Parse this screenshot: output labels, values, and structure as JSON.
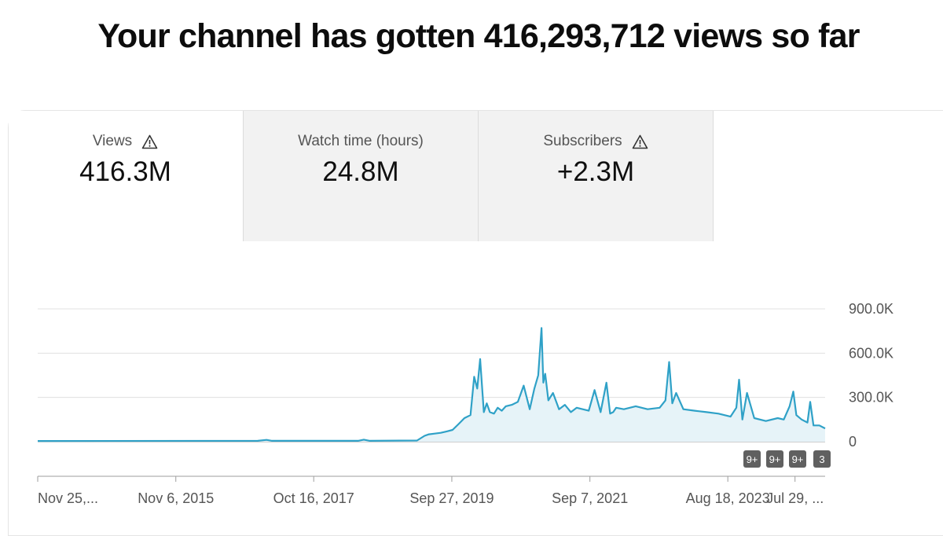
{
  "headline": "Your channel has gotten 416,293,712 views so far",
  "tabs": [
    {
      "label": "Views",
      "value": "416.3M",
      "icon": "warning-icon"
    },
    {
      "label": "Watch time (hours)",
      "value": "24.8M"
    },
    {
      "label": "Subscribers",
      "value": "+2.3M",
      "icon": "warning-icon"
    }
  ],
  "colors": {
    "line": "#2fa1c7",
    "fill": "#e6f3f8",
    "grid": "#e0e0e0",
    "badge": "#606060"
  },
  "badges": [
    "9+",
    "9+",
    "9+",
    "3"
  ],
  "chart_data": {
    "type": "area",
    "title": "",
    "xlabel": "",
    "ylabel": "",
    "x_range": [
      "2013-11-25",
      "2024-12-31"
    ],
    "ylim": [
      0,
      900000
    ],
    "y_ticks": [
      0,
      300000,
      600000,
      900000
    ],
    "y_tick_labels": [
      "0",
      "300.0K",
      "600.0K",
      "900.0K"
    ],
    "x_tick_dates": [
      "2013-11-25",
      "2015-11-06",
      "2017-10-16",
      "2019-09-27",
      "2021-09-07",
      "2023-08-18",
      "2024-07-29"
    ],
    "x_tick_labels": [
      "Nov 25,...",
      "Nov 6, 2015",
      "Oct 16, 2017",
      "Sep 27, 2019",
      "Sep 7, 2021",
      "Aug 18, 2023",
      "Jul 29, ..."
    ],
    "grid": true,
    "series": [
      {
        "x": [
          "2013-11-25",
          "2017-01-01",
          "2017-02-15",
          "2017-03-15",
          "2018-06-01",
          "2018-07-01",
          "2018-08-01",
          "2019-04-01",
          "2019-05-10",
          "2019-06-01",
          "2019-07-01",
          "2019-08-01",
          "2019-09-01",
          "2019-10-01",
          "2019-11-01",
          "2019-12-01",
          "2020-01-01",
          "2020-01-20",
          "2020-02-05",
          "2020-02-20",
          "2020-03-10",
          "2020-03-25",
          "2020-04-10",
          "2020-05-01",
          "2020-05-20",
          "2020-06-10",
          "2020-07-01",
          "2020-08-01",
          "2020-09-01",
          "2020-10-01",
          "2020-11-01",
          "2020-11-25",
          "2020-12-15",
          "2021-01-01",
          "2021-01-10",
          "2021-01-20",
          "2021-02-05",
          "2021-03-01",
          "2021-04-01",
          "2021-05-01",
          "2021-06-01",
          "2021-07-01",
          "2021-08-01",
          "2021-09-01",
          "2021-10-01",
          "2021-11-01",
          "2021-12-01",
          "2021-12-20",
          "2022-01-05",
          "2022-01-20",
          "2022-03-01",
          "2022-05-01",
          "2022-07-01",
          "2022-09-01",
          "2022-10-01",
          "2022-10-20",
          "2022-11-05",
          "2022-11-25",
          "2023-01-01",
          "2023-03-01",
          "2023-05-01",
          "2023-07-01",
          "2023-09-01",
          "2023-10-01",
          "2023-10-15",
          "2023-11-01",
          "2023-11-25",
          "2024-01-01",
          "2024-03-01",
          "2024-05-01",
          "2024-06-01",
          "2024-07-01",
          "2024-07-20",
          "2024-08-05",
          "2024-09-01",
          "2024-10-01",
          "2024-10-15",
          "2024-11-01",
          "2024-12-01",
          "2024-12-31"
        ],
        "values": [
          5000,
          6000,
          12000,
          6000,
          6000,
          14000,
          6000,
          8000,
          40000,
          50000,
          55000,
          60000,
          70000,
          80000,
          120000,
          160000,
          180000,
          440000,
          360000,
          560000,
          200000,
          260000,
          200000,
          190000,
          230000,
          210000,
          240000,
          250000,
          270000,
          380000,
          220000,
          360000,
          450000,
          770000,
          400000,
          460000,
          280000,
          330000,
          220000,
          250000,
          200000,
          230000,
          220000,
          210000,
          350000,
          200000,
          400000,
          190000,
          200000,
          230000,
          220000,
          240000,
          220000,
          230000,
          280000,
          540000,
          260000,
          330000,
          220000,
          210000,
          200000,
          190000,
          170000,
          230000,
          420000,
          150000,
          330000,
          160000,
          140000,
          160000,
          150000,
          240000,
          340000,
          180000,
          150000,
          130000,
          270000,
          110000,
          110000,
          90000
        ]
      }
    ]
  }
}
